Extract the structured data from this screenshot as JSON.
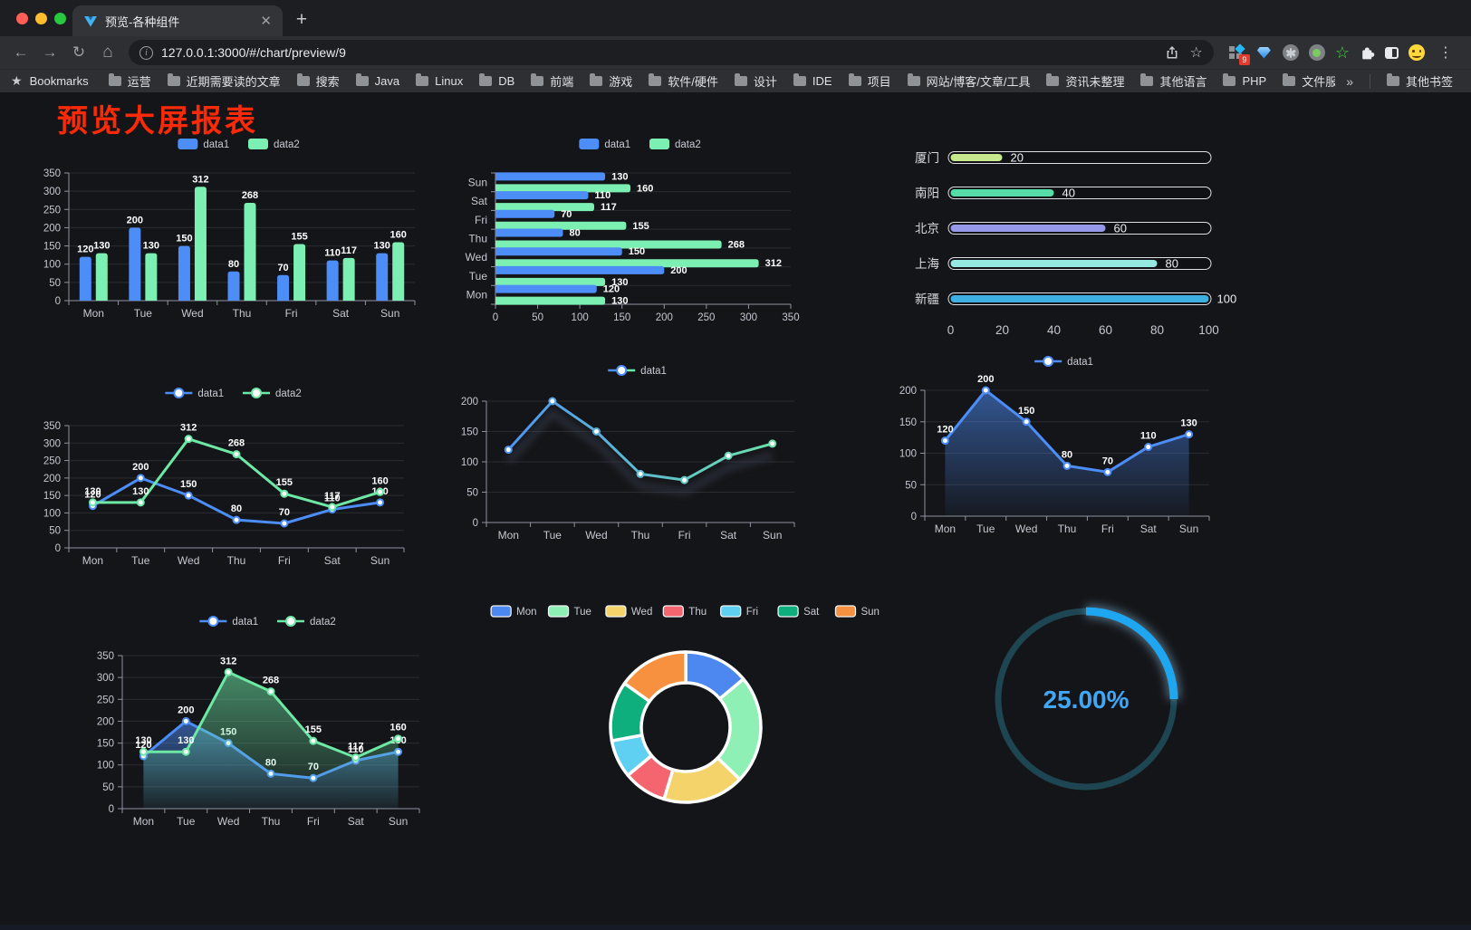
{
  "browser": {
    "tab_title": "预览-各种组件",
    "url": "127.0.0.1:3000/#/chart/preview/9",
    "bookmarks_label": "Bookmarks",
    "bookmark_folders": [
      "运营",
      "近期需要读的文章",
      "搜索",
      "Java",
      "Linux",
      "DB",
      "前端",
      "游戏",
      "软件/硬件",
      "设计",
      "IDE",
      "项目",
      "网站/博客/文章/工具",
      "资讯未整理",
      "其他语言",
      "PHP",
      "文件服务器"
    ],
    "overflow_chevron": "»",
    "other_bookmarks_label": "其他书签",
    "extension_badge": "9"
  },
  "page": {
    "title": "预览大屏报表",
    "title_color": "#fa2a08"
  },
  "chart_data": [
    {
      "id": "bar-vertical",
      "type": "bar",
      "title": "",
      "legend": [
        "data1",
        "data2"
      ],
      "legend_position": "top",
      "categories": [
        "Mon",
        "Tue",
        "Wed",
        "Thu",
        "Fri",
        "Sat",
        "Sun"
      ],
      "series": [
        {
          "name": "data1",
          "color": "#4c8df7",
          "values": [
            120,
            200,
            150,
            80,
            70,
            110,
            130
          ]
        },
        {
          "name": "data2",
          "color": "#7cefb2",
          "values": [
            130,
            130,
            312,
            268,
            155,
            117,
            160
          ]
        }
      ],
      "ylim": [
        0,
        350
      ],
      "ytick_step": 50,
      "grid": true,
      "show_labels": true
    },
    {
      "id": "bar-horizontal",
      "type": "bar-horizontal",
      "title": "",
      "legend": [
        "data1",
        "data2"
      ],
      "legend_position": "top",
      "categories": [
        "Mon",
        "Tue",
        "Wed",
        "Thu",
        "Fri",
        "Sat",
        "Sun"
      ],
      "categories_note": "category axis vertical, Mon at bottom → Sun at top",
      "series": [
        {
          "name": "data1",
          "color": "#4c8df7",
          "values": [
            120,
            200,
            150,
            80,
            70,
            110,
            130
          ]
        },
        {
          "name": "data2",
          "color": "#7cefb2",
          "values": [
            130,
            130,
            312,
            268,
            155,
            117,
            160
          ]
        }
      ],
      "xlim": [
        0,
        350
      ],
      "xtick_step": 50,
      "grid": true,
      "show_labels": true
    },
    {
      "id": "progress",
      "type": "bar-horizontal",
      "subtype": "progress-pills",
      "title": "",
      "categories": [
        "厦门",
        "南阳",
        "北京",
        "上海",
        "新疆"
      ],
      "values": [
        20,
        40,
        60,
        80,
        100
      ],
      "colors": [
        "#c5e88c",
        "#56dca6",
        "#9598e8",
        "#95e7e1",
        "#3cafe0"
      ],
      "xlim": [
        0,
        100
      ],
      "xticks": [
        0,
        20,
        40,
        60,
        80,
        100
      ],
      "show_labels": true
    },
    {
      "id": "line-dual",
      "type": "line",
      "title": "",
      "legend": [
        "data1",
        "data2"
      ],
      "legend_position": "top",
      "categories": [
        "Mon",
        "Tue",
        "Wed",
        "Thu",
        "Fri",
        "Sat",
        "Sun"
      ],
      "series": [
        {
          "name": "data1",
          "color": "#4c8df7",
          "values": [
            120,
            200,
            150,
            80,
            70,
            110,
            130
          ]
        },
        {
          "name": "data2",
          "color": "#6ee8a5",
          "values": [
            130,
            130,
            312,
            268,
            155,
            117,
            160
          ]
        }
      ],
      "ylim": [
        0,
        350
      ],
      "ytick_step": 50,
      "grid": true,
      "show_labels": true
    },
    {
      "id": "line-gradient",
      "type": "line",
      "title": "",
      "legend": [
        "data1"
      ],
      "legend_position": "top",
      "categories": [
        "Mon",
        "Tue",
        "Wed",
        "Thu",
        "Fri",
        "Sat",
        "Sun"
      ],
      "gradient_stroke": true,
      "series": [
        {
          "name": "data1",
          "color": "#4c8df7",
          "color2": "#6ee8a5",
          "values": [
            120,
            200,
            150,
            80,
            70,
            110,
            130
          ]
        }
      ],
      "ylim": [
        0,
        200
      ],
      "ytick_step": 50,
      "grid": true,
      "show_labels": false
    },
    {
      "id": "area-single",
      "type": "area",
      "title": "",
      "legend": [
        "data1"
      ],
      "legend_position": "top",
      "categories": [
        "Mon",
        "Tue",
        "Wed",
        "Thu",
        "Fri",
        "Sat",
        "Sun"
      ],
      "series": [
        {
          "name": "data1",
          "color": "#4c8df7",
          "values": [
            120,
            200,
            150,
            80,
            70,
            110,
            130
          ]
        }
      ],
      "ylim": [
        0,
        200
      ],
      "ytick_step": 50,
      "grid": true,
      "show_labels": true
    },
    {
      "id": "area-dual",
      "type": "area",
      "title": "",
      "legend": [
        "data1",
        "data2"
      ],
      "legend_position": "top",
      "categories": [
        "Mon",
        "Tue",
        "Wed",
        "Thu",
        "Fri",
        "Sat",
        "Sun"
      ],
      "series": [
        {
          "name": "data1",
          "color": "#4c8df7",
          "values": [
            120,
            200,
            150,
            80,
            70,
            110,
            130
          ]
        },
        {
          "name": "data2",
          "color": "#6ee8a5",
          "values": [
            130,
            130,
            312,
            268,
            155,
            117,
            160
          ]
        }
      ],
      "ylim": [
        0,
        350
      ],
      "ytick_step": 50,
      "grid": true,
      "show_labels": true
    },
    {
      "id": "donut",
      "type": "pie",
      "title": "",
      "legend_position": "top",
      "categories": [
        "Mon",
        "Tue",
        "Wed",
        "Thu",
        "Fri",
        "Sat",
        "Sun"
      ],
      "values": [
        120,
        200,
        150,
        80,
        70,
        110,
        130
      ],
      "colors": [
        "#4d87f0",
        "#8ff0b5",
        "#f3d36a",
        "#f5656f",
        "#5fd0f2",
        "#0eaf7c",
        "#f7913f"
      ],
      "inner_radius_ratio": 0.59
    },
    {
      "id": "gauge",
      "type": "gauge",
      "title": "",
      "value": 25,
      "label": "25.00%",
      "color": "#1fa6f0",
      "track_color": "#1d4652",
      "text_color": "#41a7f5"
    }
  ]
}
